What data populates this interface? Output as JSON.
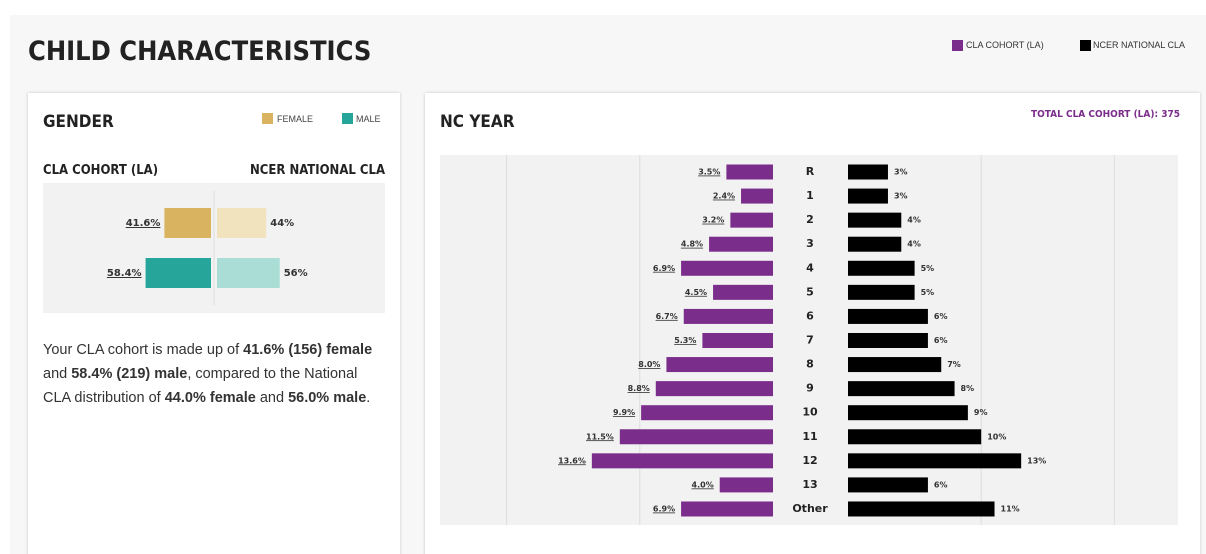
{
  "header": {
    "title": "CHILD CHARACTERISTICS"
  },
  "gender": {
    "title": "GENDER",
    "type": "bar",
    "categories": [
      "FEMALE",
      "MALE"
    ],
    "series": [
      {
        "name": "CLA COHORT (LA)",
        "colors": [
          "#d9b35f",
          "#26a69a"
        ],
        "values": [
          41.6,
          58.4
        ],
        "value_labels": [
          "41.6%",
          "58.4%"
        ]
      },
      {
        "name": "NCER NATIONAL CLA",
        "colors": [
          "#f2e3bf",
          "#a9ddd5"
        ],
        "values": [
          44,
          56
        ],
        "value_labels": [
          "44%",
          "56%"
        ]
      }
    ],
    "xlim": [
      0,
      150
    ],
    "summary": [
      {
        "text": "Your CLA cohort is made up of ",
        "bold": false
      },
      {
        "text": "41.6% (156) female",
        "bold": true
      },
      {
        "text": " and ",
        "bold": false
      },
      {
        "text": "58.4% (219) male",
        "bold": true
      },
      {
        "text": ", compared to the National CLA distribution of ",
        "bold": false
      },
      {
        "text": "44.0% female",
        "bold": true
      },
      {
        "text": " and ",
        "bold": false
      },
      {
        "text": "56.0% male",
        "bold": true
      },
      {
        "text": ".",
        "bold": false
      }
    ]
  },
  "nc_year": {
    "title": "NC YEAR",
    "type": "bar",
    "total_label": "TOTAL CLA COHORT (LA): 375",
    "categories": [
      "R",
      "1",
      "2",
      "3",
      "4",
      "5",
      "6",
      "7",
      "8",
      "9",
      "10",
      "11",
      "12",
      "13",
      "Other"
    ],
    "series": [
      {
        "name": "CLA COHORT (LA)",
        "color": "#7b2d8b",
        "values": [
          3.5,
          2.4,
          3.2,
          4.8,
          6.9,
          4.5,
          6.7,
          5.3,
          8.0,
          8.8,
          9.9,
          11.5,
          13.6,
          4.0,
          6.9
        ],
        "value_labels": [
          "3.5%",
          "2.4%",
          "3.2%",
          "4.8%",
          "6.9%",
          "4.5%",
          "6.7%",
          "5.3%",
          "8.0%",
          "8.8%",
          "9.9%",
          "11.5%",
          "13.6%",
          "4.0%",
          "6.9%"
        ]
      },
      {
        "name": "NCER NATIONAL CLA",
        "color": "#000000",
        "values": [
          3,
          3,
          4,
          4,
          5,
          5,
          6,
          6,
          7,
          8,
          9,
          10,
          13,
          6,
          11
        ],
        "value_labels": [
          "3%",
          "3%",
          "4%",
          "4%",
          "5%",
          "5%",
          "6%",
          "6%",
          "7%",
          "8%",
          "9%",
          "10%",
          "13%",
          "6%",
          "11%"
        ]
      }
    ],
    "xlim": [
      0,
      25
    ],
    "xticks": [
      10,
      20
    ],
    "grid": true
  }
}
